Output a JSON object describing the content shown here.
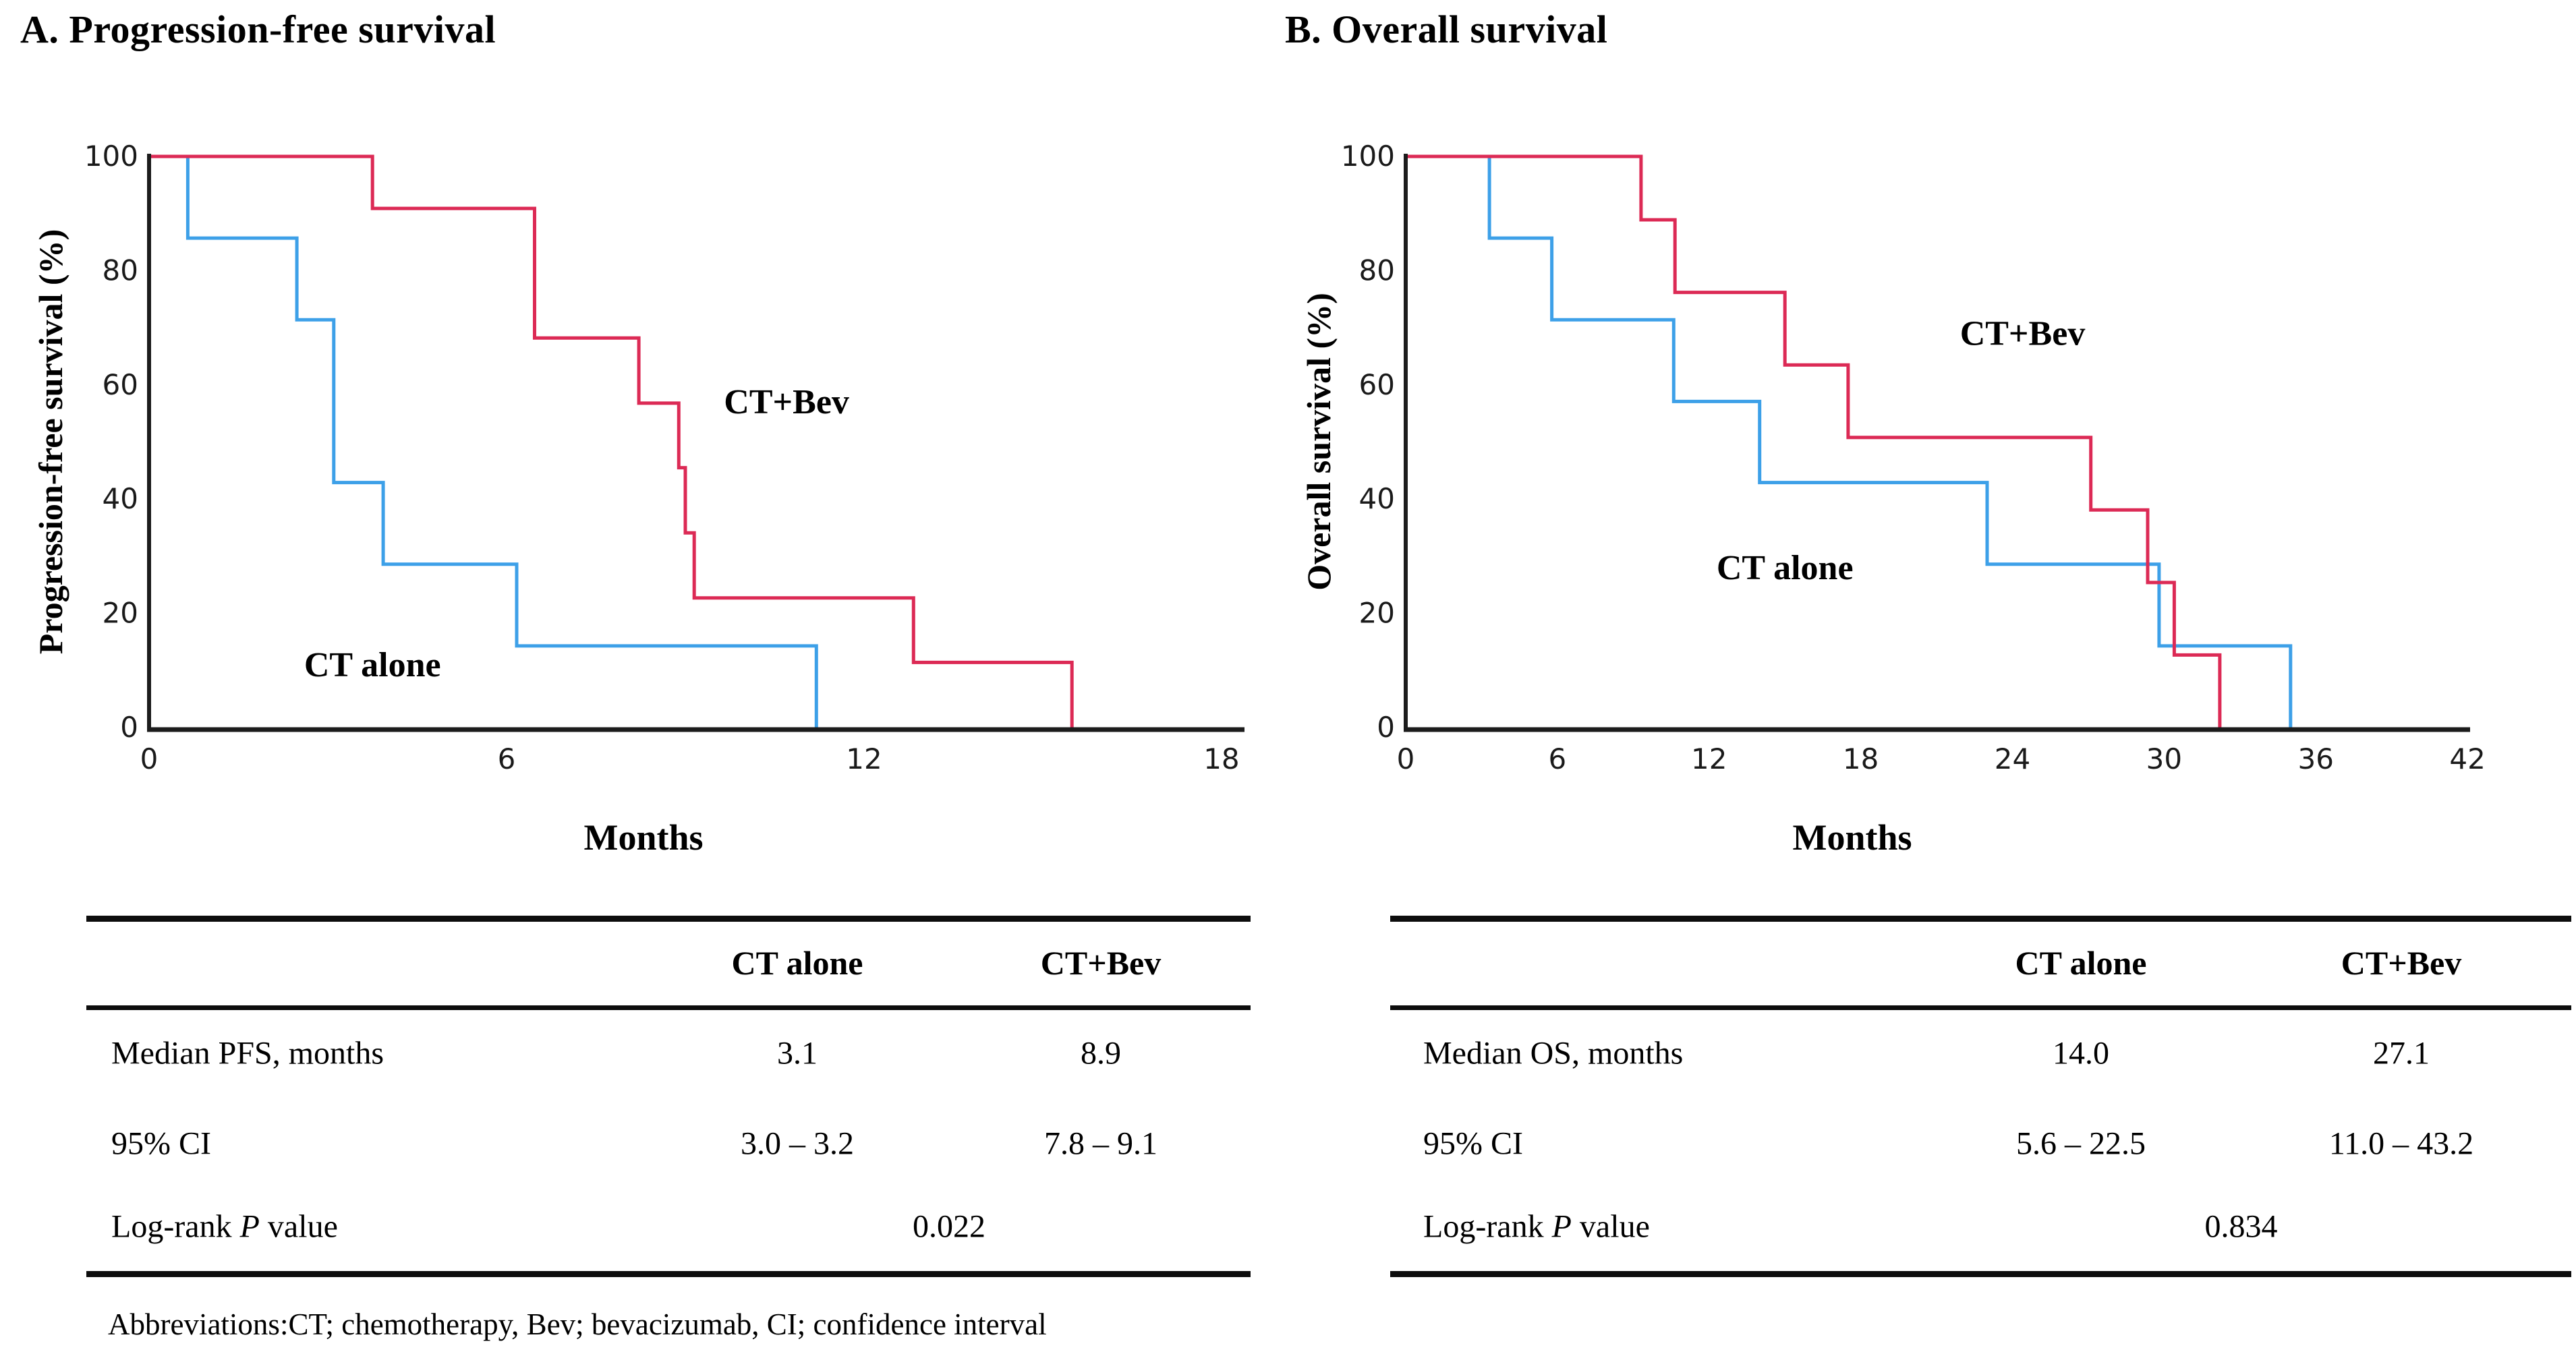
{
  "figure": {
    "abbreviations": "Abbreviations:CT; chemotherapy, Bev; bevacizumab, CI; confidence interval",
    "colors": {
      "ct_alone": "#3da0e8",
      "ct_bev": "#dc2a55",
      "axis": "#1c1c1c",
      "text": "#000000"
    }
  },
  "panels": [
    {
      "title": "A. Progression-free survival",
      "ylabel": "Progression-free survival (%)",
      "xlabel": "Months"
    },
    {
      "title": "B. Overall survival",
      "ylabel": "Overall survival (%)",
      "xlabel": "Months"
    }
  ],
  "chart_data": [
    {
      "type": "line",
      "variant": "kaplan-meier-step",
      "title": "A. Progression-free survival",
      "xlabel": "Months",
      "ylabel": "Progression-free survival (%)",
      "xlim": [
        0,
        18
      ],
      "ylim": [
        0,
        100
      ],
      "xticks": [
        0,
        6,
        12,
        18
      ],
      "yticks": [
        0,
        20,
        40,
        60,
        80,
        100
      ],
      "grid": false,
      "legend": "inline-labels",
      "series": [
        {
          "name": "CT alone",
          "color_key": "ct_alone",
          "label_at": [
            3.75,
            9
          ],
          "start": [
            0,
            100
          ],
          "steps": [
            [
              0.65,
              85.7
            ],
            [
              2.48,
              71.4
            ],
            [
              3.1,
              42.9
            ],
            [
              3.93,
              28.6
            ],
            [
              6.17,
              14.3
            ],
            [
              11.2,
              0
            ]
          ]
        },
        {
          "name": "CT+Bev",
          "color_key": "ct_bev",
          "label_at": [
            10.7,
            55
          ],
          "start": [
            0,
            100
          ],
          "steps": [
            [
              3.75,
              90.9
            ],
            [
              6.47,
              68.2
            ],
            [
              8.22,
              56.8
            ],
            [
              8.89,
              45.5
            ],
            [
              9.0,
              34.1
            ],
            [
              9.15,
              22.7
            ],
            [
              12.83,
              11.4
            ],
            [
              15.49,
              0
            ]
          ]
        }
      ]
    },
    {
      "type": "line",
      "variant": "kaplan-meier-step",
      "title": "B. Overall survival",
      "xlabel": "Months",
      "ylabel": "Overall survival (%)",
      "xlim": [
        0,
        42
      ],
      "ylim": [
        0,
        100
      ],
      "xticks": [
        0,
        6,
        12,
        18,
        24,
        30,
        36,
        42
      ],
      "yticks": [
        0,
        20,
        40,
        60,
        80,
        100
      ],
      "grid": false,
      "legend": "inline-labels",
      "series": [
        {
          "name": "CT alone",
          "color_key": "ct_alone",
          "label_at": [
            15,
            26
          ],
          "start": [
            0,
            100
          ],
          "steps": [
            [
              3.31,
              85.7
            ],
            [
              5.78,
              71.4
            ],
            [
              10.6,
              57.1
            ],
            [
              14.0,
              42.9
            ],
            [
              23.0,
              28.6
            ],
            [
              29.8,
              14.3
            ],
            [
              35.0,
              0
            ]
          ]
        },
        {
          "name": "CT+Bev",
          "color_key": "ct_bev",
          "label_at": [
            24.4,
            67
          ],
          "start": [
            0,
            100
          ],
          "steps": [
            [
              9.31,
              88.9
            ],
            [
              10.65,
              76.2
            ],
            [
              15.0,
              63.5
            ],
            [
              17.5,
              50.8
            ],
            [
              27.1,
              38.1
            ],
            [
              29.35,
              25.4
            ],
            [
              30.4,
              12.7
            ],
            [
              32.2,
              0
            ]
          ]
        }
      ]
    }
  ],
  "tables": [
    {
      "header_cols": [
        "CT alone",
        "CT+Bev"
      ],
      "rows": [
        {
          "label": "Median PFS, months",
          "values": [
            "3.1",
            "8.9"
          ]
        },
        {
          "label": "95% CI",
          "values": [
            "3.0 – 3.2",
            "7.8 – 9.1"
          ]
        },
        {
          "label_parts": [
            {
              "t": "Log-rank "
            },
            {
              "t": "P",
              "i": true
            },
            {
              "t": " value"
            }
          ],
          "span_value": "0.022"
        }
      ]
    },
    {
      "header_cols": [
        "CT alone",
        "CT+Bev"
      ],
      "rows": [
        {
          "label": "Median OS, months",
          "values": [
            "14.0",
            "27.1"
          ]
        },
        {
          "label": "95% CI",
          "values": [
            "5.6 – 22.5",
            "11.0 – 43.2"
          ]
        },
        {
          "label_parts": [
            {
              "t": "Log-rank "
            },
            {
              "t": "P",
              "i": true
            },
            {
              "t": " value"
            }
          ],
          "span_value": "0.834"
        }
      ]
    }
  ]
}
